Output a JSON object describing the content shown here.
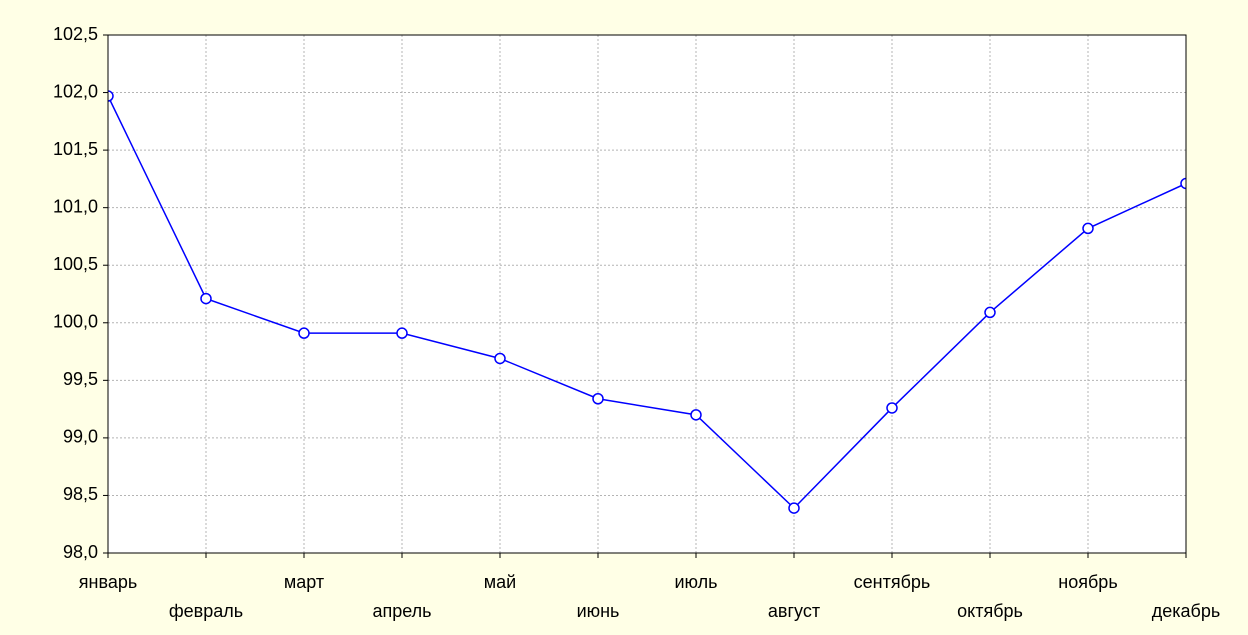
{
  "chart_data": {
    "type": "line",
    "categories": [
      "январь",
      "февраль",
      "март",
      "апрель",
      "май",
      "июнь",
      "июль",
      "август",
      "сентябрь",
      "октябрь",
      "ноябрь",
      "декабрь"
    ],
    "values": [
      101.97,
      100.21,
      99.91,
      99.91,
      99.69,
      99.34,
      99.2,
      98.39,
      99.26,
      100.09,
      100.82,
      101.21
    ],
    "color": "#0000ff",
    "ylim": [
      98.0,
      102.5
    ],
    "yticks": [
      {
        "value": 98.0,
        "label": "98,0"
      },
      {
        "value": 98.5,
        "label": "98,5"
      },
      {
        "value": 99.0,
        "label": "99,0"
      },
      {
        "value": 99.5,
        "label": "99,5"
      },
      {
        "value": 100.0,
        "label": "100,0"
      },
      {
        "value": 100.5,
        "label": "100,5"
      },
      {
        "value": 101.0,
        "label": "101,0"
      },
      {
        "value": 101.5,
        "label": "101,5"
      },
      {
        "value": 102.0,
        "label": "102,0"
      },
      {
        "value": 102.5,
        "label": "102,5"
      }
    ],
    "grid": true
  }
}
